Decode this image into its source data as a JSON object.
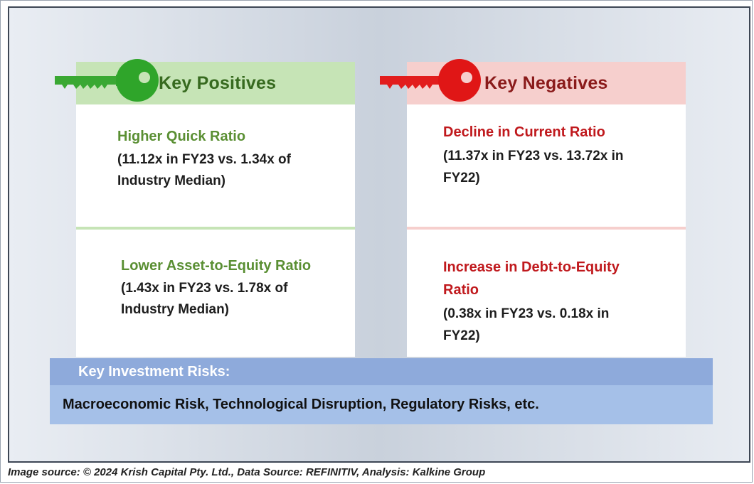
{
  "positives": {
    "title": "Key Positives",
    "items": [
      {
        "title": "Higher Quick Ratio",
        "detail_line1": "(11.12x in FY23 vs. 1.34x of",
        "detail_line2": "Industry Median)"
      },
      {
        "title": "Lower Asset-to-Equity Ratio",
        "detail_line1": "(1.43x in FY23 vs. 1.78x of",
        "detail_line2": "Industry Median)"
      }
    ],
    "color": "#5a8f33"
  },
  "negatives": {
    "title": "Key Negatives",
    "items": [
      {
        "title_line1": "Decline in Current Ratio",
        "detail_line1": "(11.37x in FY23 vs. 13.72x in",
        "detail_line2": "FY22)"
      },
      {
        "title_line1": "Increase in Debt-to-Equity",
        "title_line2": "Ratio",
        "detail_line1": "(0.38x in FY23 vs. 0.18x in",
        "detail_line2": "FY22)"
      }
    ],
    "color": "#c0191d"
  },
  "risks": {
    "title": "Key Investment Risks:",
    "body": "Macroeconomic Risk, Technological Disruption, Regulatory Risks, etc."
  },
  "footer": {
    "text": "Image source: © 2024 Krish Capital Pty. Ltd., Data Source: REFINITIV, Analysis: Kalkine Group"
  },
  "icons": {
    "positive_key": "green-key-icon",
    "negative_key": "red-key-icon"
  }
}
